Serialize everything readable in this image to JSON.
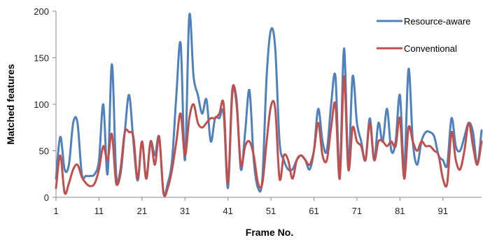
{
  "chart_data": {
    "type": "line",
    "xlabel": "Frame No.",
    "ylabel": "Matched features",
    "xlim": [
      1,
      100
    ],
    "ylim": [
      0,
      200
    ],
    "x_ticks": [
      1,
      11,
      21,
      31,
      41,
      51,
      61,
      71,
      81,
      91
    ],
    "y_ticks": [
      0,
      50,
      100,
      150,
      200
    ],
    "grid": false,
    "legend_position": "top-right",
    "x": [
      1,
      2,
      3,
      4,
      5,
      6,
      7,
      8,
      9,
      10,
      11,
      12,
      13,
      14,
      15,
      16,
      17,
      18,
      19,
      20,
      21,
      22,
      23,
      24,
      25,
      26,
      27,
      28,
      29,
      30,
      31,
      32,
      33,
      34,
      35,
      36,
      37,
      38,
      39,
      40,
      41,
      42,
      43,
      44,
      45,
      46,
      47,
      48,
      49,
      50,
      51,
      52,
      53,
      54,
      55,
      56,
      57,
      58,
      59,
      60,
      61,
      62,
      63,
      64,
      65,
      66,
      67,
      68,
      69,
      70,
      71,
      72,
      73,
      74,
      75,
      76,
      77,
      78,
      79,
      80,
      81,
      82,
      83,
      84,
      85,
      86,
      87,
      88,
      89,
      90,
      91,
      92,
      93,
      94,
      95,
      96,
      97,
      98,
      99,
      100
    ],
    "series": [
      {
        "name": "Resource-aware",
        "color": "#4F81BD",
        "values": [
          20,
          65,
          30,
          35,
          80,
          80,
          25,
          23,
          23,
          25,
          40,
          100,
          25,
          143,
          25,
          25,
          70,
          110,
          60,
          18,
          60,
          20,
          60,
          45,
          65,
          5,
          15,
          40,
          110,
          165,
          40,
          195,
          130,
          110,
          90,
          105,
          60,
          85,
          85,
          90,
          10,
          110,
          105,
          30,
          70,
          115,
          40,
          10,
          20,
          130,
          180,
          160,
          60,
          40,
          30,
          30,
          40,
          45,
          40,
          30,
          50,
          95,
          60,
          50,
          100,
          130,
          25,
          160,
          35,
          130,
          80,
          60,
          40,
          85,
          40,
          80,
          60,
          95,
          50,
          60,
          110,
          30,
          138,
          60,
          35,
          60,
          70,
          70,
          65,
          45,
          40,
          35,
          85,
          55,
          50,
          65,
          80,
          70,
          35,
          72
        ]
      },
      {
        "name": "Conventional",
        "color": "#C0504D",
        "values": [
          10,
          45,
          5,
          15,
          30,
          35,
          22,
          15,
          12,
          15,
          30,
          55,
          40,
          68,
          15,
          30,
          70,
          70,
          65,
          20,
          60,
          20,
          60,
          35,
          65,
          5,
          10,
          30,
          60,
          90,
          45,
          85,
          100,
          80,
          75,
          80,
          85,
          85,
          90,
          100,
          15,
          115,
          100,
          35,
          55,
          60,
          45,
          15,
          15,
          60,
          98,
          95,
          20,
          45,
          40,
          20,
          40,
          45,
          40,
          35,
          50,
          80,
          45,
          40,
          75,
          100,
          20,
          130,
          30,
          75,
          60,
          55,
          40,
          80,
          40,
          60,
          60,
          55,
          60,
          55,
          85,
          20,
          75,
          60,
          50,
          60,
          55,
          55,
          50,
          45,
          20,
          15,
          70,
          40,
          30,
          50,
          80,
          55,
          35,
          60
        ]
      }
    ]
  }
}
